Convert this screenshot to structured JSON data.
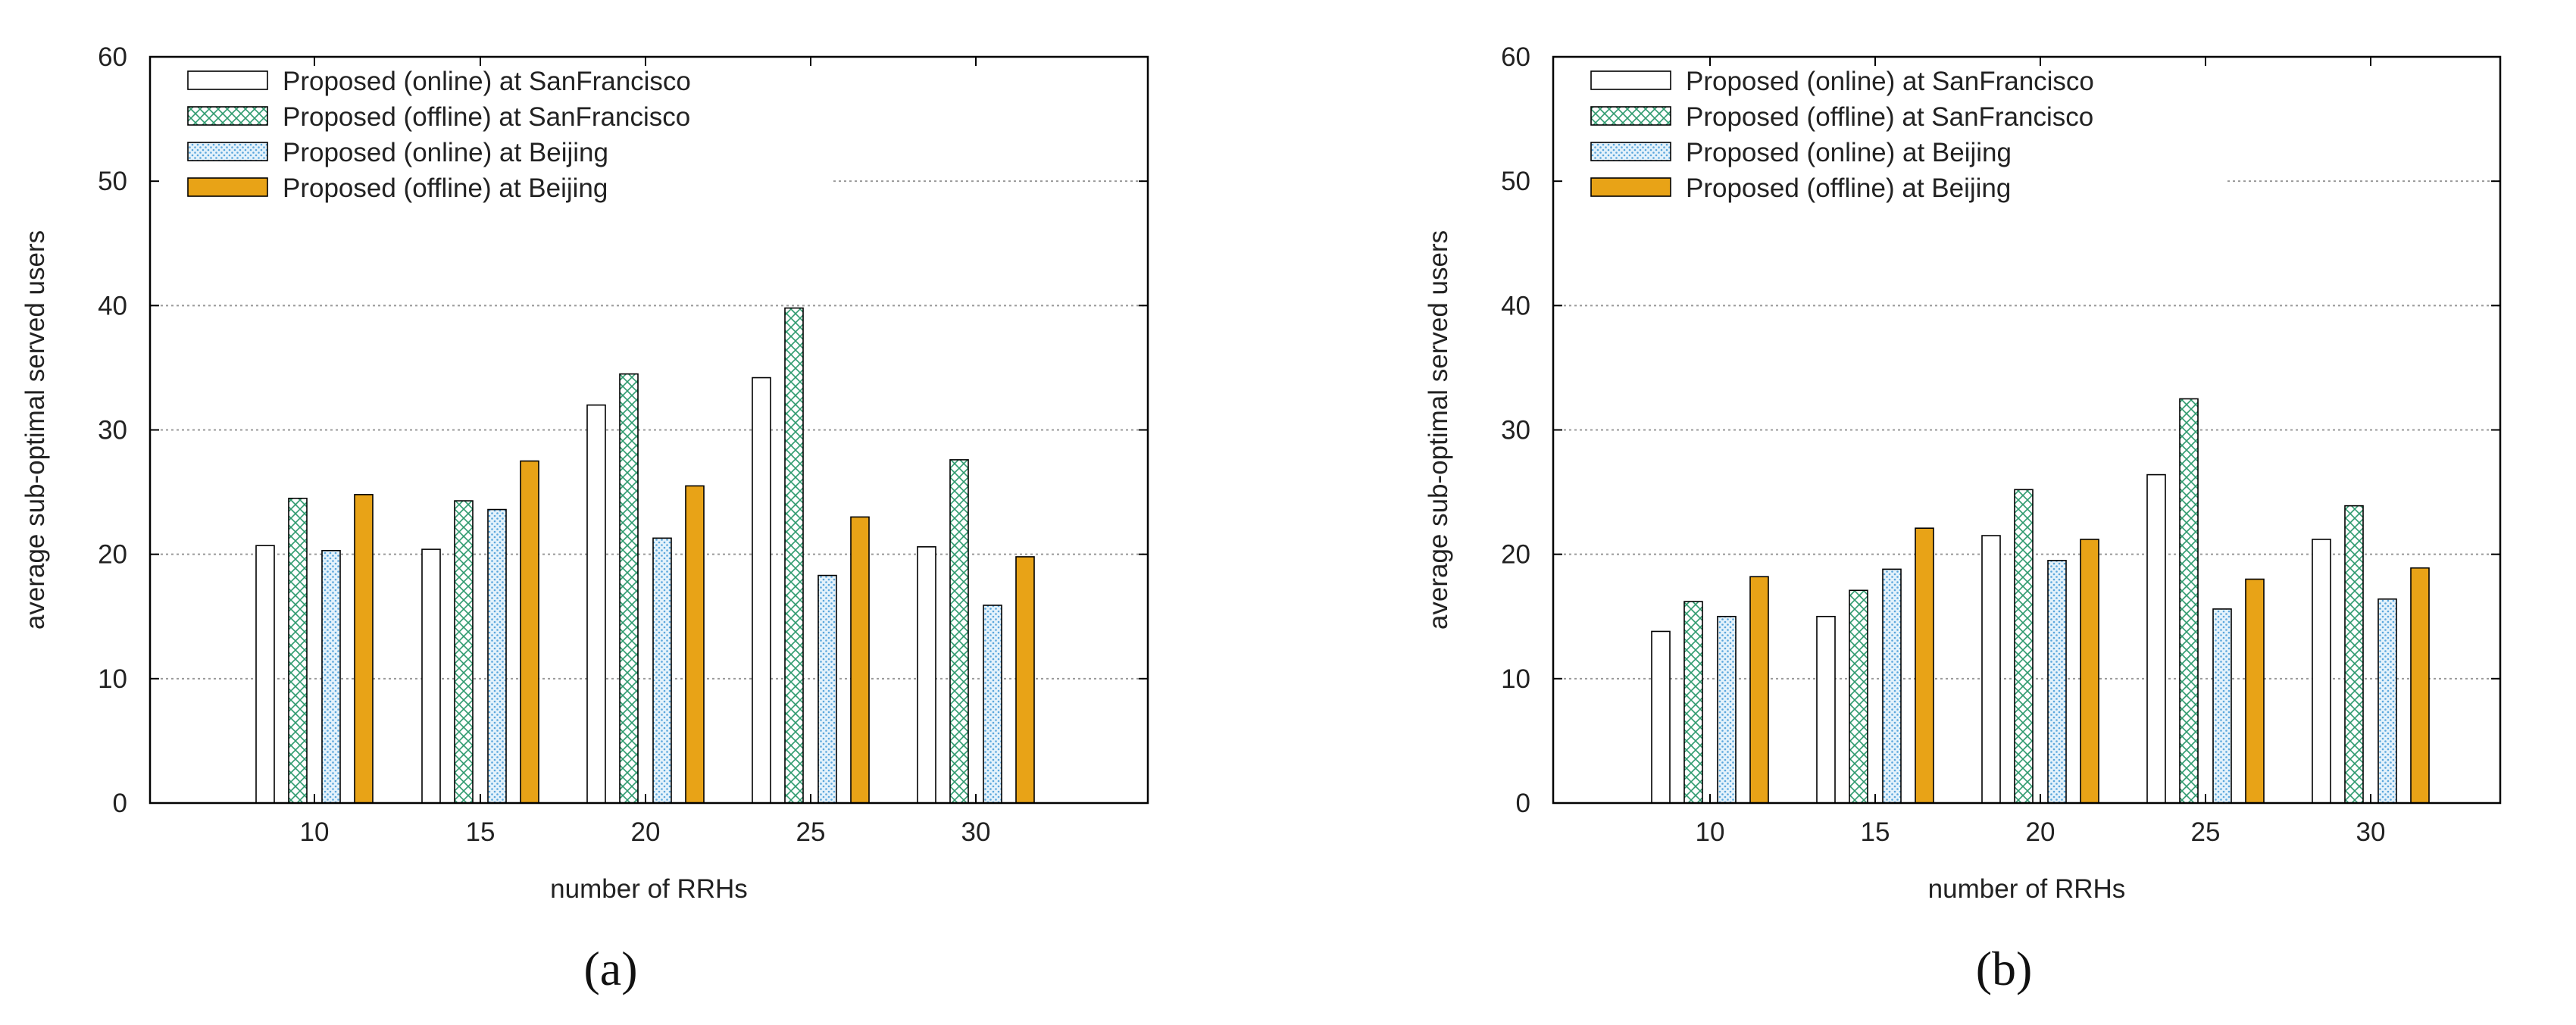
{
  "chart_data": [
    {
      "type": "bar",
      "subfigure_label": "(a)",
      "xlabel": "number of RRHs",
      "ylabel": "average sub-optimal served users",
      "ylim": [
        0,
        60
      ],
      "yticks": [
        "0",
        "10",
        "20",
        "30",
        "40",
        "50",
        "60"
      ],
      "grid": "horizontal dotted",
      "legend": "top-left",
      "categories": [
        "10",
        "15",
        "20",
        "25",
        "30"
      ],
      "series": [
        {
          "name": "Proposed (online) at SanFrancisco",
          "pattern": "white",
          "values": [
            20.7,
            20.4,
            32.0,
            34.2,
            20.6
          ]
        },
        {
          "name": "Proposed (offline) at SanFrancisco",
          "pattern": "green-cross",
          "values": [
            24.5,
            24.3,
            34.5,
            39.8,
            27.6
          ]
        },
        {
          "name": "Proposed (online) at Beijing",
          "pattern": "blue-dots",
          "values": [
            20.3,
            23.6,
            21.3,
            18.3,
            15.9
          ]
        },
        {
          "name": "Proposed (offline) at Beijing",
          "pattern": "orange",
          "values": [
            24.8,
            27.5,
            25.5,
            23.0,
            19.8
          ]
        }
      ]
    },
    {
      "type": "bar",
      "subfigure_label": "(b)",
      "xlabel": "number of RRHs",
      "ylabel": "average sub-optimal served users",
      "ylim": [
        0,
        60
      ],
      "yticks": [
        "0",
        "10",
        "20",
        "30",
        "40",
        "50",
        "60"
      ],
      "grid": "horizontal dotted",
      "legend": "top-left",
      "categories": [
        "10",
        "15",
        "20",
        "25",
        "30"
      ],
      "series": [
        {
          "name": "Proposed (online) at SanFrancisco",
          "pattern": "white",
          "values": [
            13.8,
            15.0,
            21.5,
            26.4,
            21.2
          ]
        },
        {
          "name": "Proposed (offline) at SanFrancisco",
          "pattern": "green-cross",
          "values": [
            16.2,
            17.1,
            25.2,
            32.5,
            23.9
          ]
        },
        {
          "name": "Proposed (online) at Beijing",
          "pattern": "blue-dots",
          "values": [
            15.0,
            18.8,
            19.5,
            15.6,
            16.4
          ]
        },
        {
          "name": "Proposed (offline) at Beijing",
          "pattern": "orange",
          "values": [
            18.2,
            22.1,
            21.2,
            18.0,
            18.9
          ]
        }
      ]
    }
  ],
  "colors": {
    "orange": "#e8a317",
    "green_line": "#2e9a6e",
    "blue_dot": "#5aa6dc",
    "blue_bg": "#e4f2fb",
    "grid": "#999999",
    "axis": "#000000"
  }
}
